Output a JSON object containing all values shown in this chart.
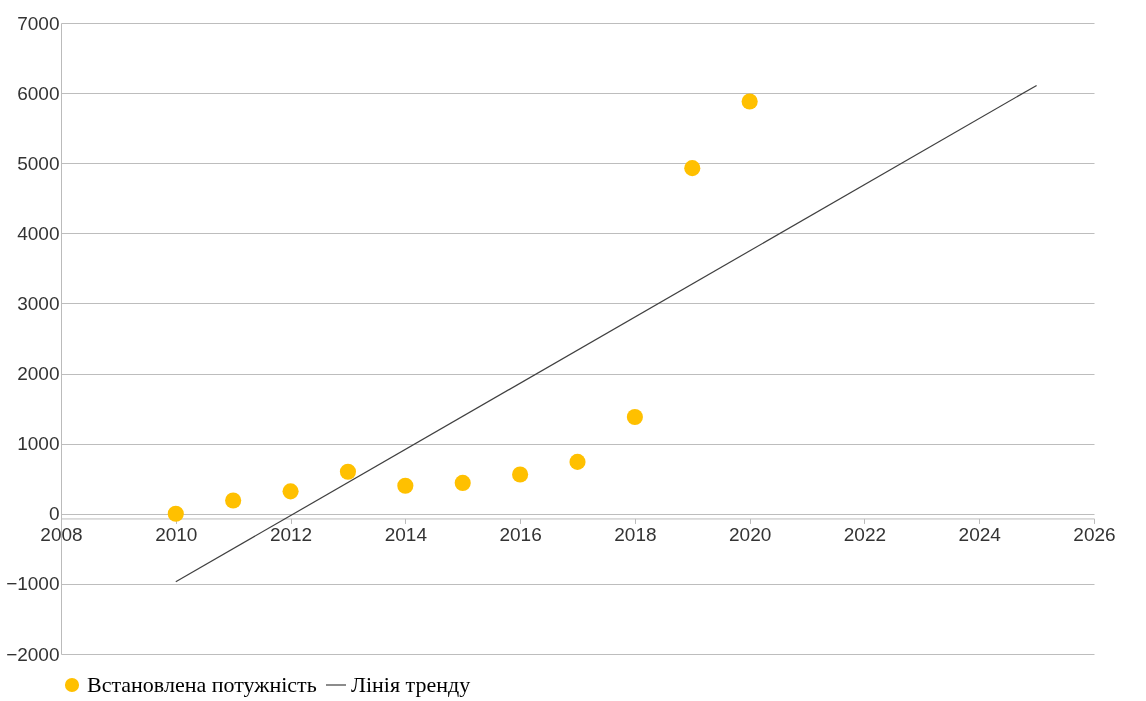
{
  "chart_data": {
    "type": "scatter",
    "xlim": [
      2008,
      2026
    ],
    "xticks": [
      2008,
      2010,
      2012,
      2014,
      2016,
      2018,
      2020,
      2022,
      2024,
      2026
    ],
    "ylim": [
      -2000,
      7000
    ],
    "yticks": [
      -2000,
      -1000,
      0,
      1000,
      2000,
      3000,
      4000,
      5000,
      6000,
      7000
    ],
    "grid": "y",
    "legend": "bottom",
    "series": [
      {
        "name": "Встановлена потужність",
        "marker": "circle",
        "color": "#ffc000",
        "x": [
          2010,
          2011,
          2012,
          2013,
          2014,
          2015,
          2016,
          2017,
          2018,
          2019,
          2020
        ],
        "values": [
          0,
          190,
          320,
          600,
          400,
          440,
          560,
          740,
          1380,
          4930,
          5880
        ]
      },
      {
        "name": "Лінія тренду",
        "type": "line",
        "marker": "none",
        "color": "#404040",
        "x": [
          2010,
          2025
        ],
        "values": [
          -970,
          6110
        ]
      }
    ]
  }
}
